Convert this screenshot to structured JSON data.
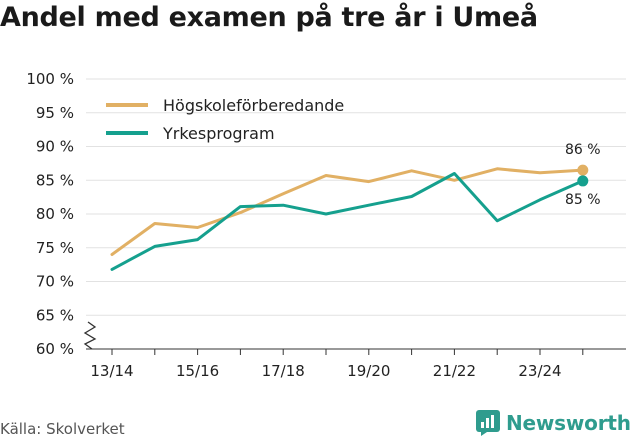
{
  "title": "Andel med examen på tre år i Umeå",
  "source": "Källa: Skolverket",
  "brand": {
    "name": "Newsworthy",
    "icon": "newsworthy-logo-icon",
    "color": "#2f9c8e"
  },
  "chart_data": {
    "type": "line",
    "title": "Andel med examen på tre år i Umeå",
    "x": [
      "13/14",
      "14/15",
      "15/16",
      "16/17",
      "17/18",
      "18/19",
      "19/20",
      "20/21",
      "21/22",
      "22/23",
      "23/24",
      "24/25"
    ],
    "x_tick_labels": [
      "13/14",
      "15/16",
      "17/18",
      "19/20",
      "21/22",
      "23/24"
    ],
    "y_tick_labels": [
      "60 %",
      "65 %",
      "70 %",
      "75 %",
      "80 %",
      "85 %",
      "90 %",
      "95 %",
      "100 %"
    ],
    "ylim": [
      60,
      100
    ],
    "y_axis_break": true,
    "grid": "horizontal",
    "legend_placement": "top-left",
    "series": [
      {
        "name": "Högskoleförberedande",
        "color": "#e1b064",
        "values": [
          74.0,
          78.6,
          78.0,
          80.2,
          83.0,
          85.7,
          84.8,
          86.4,
          85.0,
          86.7,
          86.1,
          86.5
        ],
        "end_label": "86 %"
      },
      {
        "name": "Yrkesprogram",
        "color": "#15a08e",
        "values": [
          71.8,
          75.2,
          76.2,
          81.1,
          81.3,
          80.0,
          81.3,
          82.6,
          86.0,
          79.0,
          82.1,
          84.9
        ],
        "end_label": "85 %"
      }
    ]
  }
}
